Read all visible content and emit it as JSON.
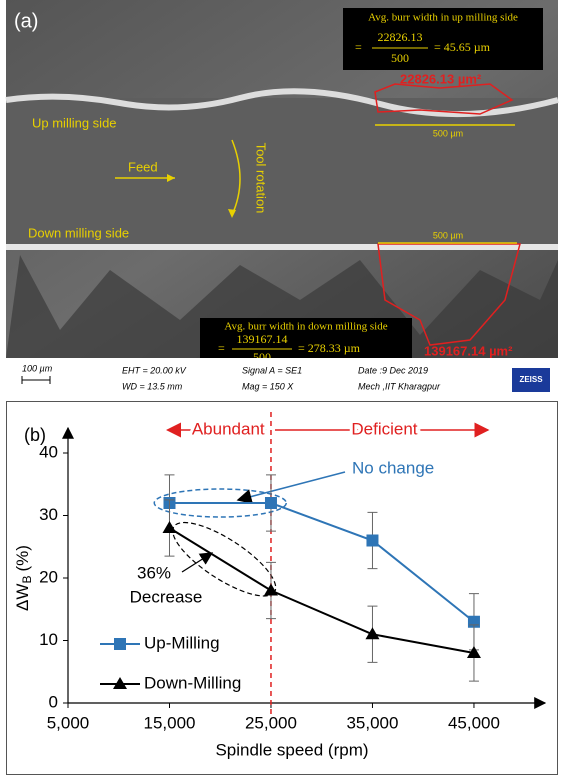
{
  "panel_a": {
    "label": "(a)",
    "up_box": {
      "title": "Avg. burr width in up milling side",
      "numerator": "22826.13",
      "denominator": "500",
      "result": "= 45.65 µm",
      "eq": "="
    },
    "up_area": "22826.13 µm²",
    "up_scale": "500 µm",
    "up_side": "Up milling side",
    "feed": "Feed",
    "rotation": "Tool rotation",
    "down_side": "Down milling side",
    "down_scale": "500 µm",
    "down_box": {
      "title": "Avg. burr width in down milling side",
      "numerator": "139167.14",
      "denominator": "500",
      "result": "= 278.33 µm",
      "eq": "="
    },
    "down_area": "139167.14 µm²",
    "info": {
      "scale": "100 µm",
      "eht": "EHT = 20.00 kV",
      "wd": "WD = 13.5 mm",
      "signal": "Signal A = SE1",
      "mag": "Mag =   150 X",
      "date": "Date :9 Dec 2019",
      "place": "Mech ,IIT Kharagpur",
      "logo": "ZEISS"
    }
  },
  "chart_data": {
    "type": "line",
    "panel_label": "(b)",
    "x_label": "Spindle speed (rpm)",
    "y_label": "ΔW",
    "y_label_sub": "B",
    "y_label_unit": "(%)",
    "x": [
      15000,
      25000,
      35000,
      45000
    ],
    "series": [
      {
        "name": "Up-Milling",
        "color": "#2e75b6",
        "marker": "square",
        "values": [
          32,
          32,
          26,
          13
        ],
        "errors": [
          4.5,
          4.5,
          4.5,
          4.5
        ]
      },
      {
        "name": "Down-Milling",
        "color": "#000000",
        "marker": "triangle",
        "values": [
          28,
          18,
          11,
          8
        ],
        "errors": [
          4.5,
          4.5,
          4.5,
          4.5
        ]
      }
    ],
    "xlim": [
      5000,
      52000
    ],
    "ylim": [
      0,
      44
    ],
    "xticks": [
      {
        "value": 5000,
        "label": "5,000"
      },
      {
        "value": 15000,
        "label": "15,000"
      },
      {
        "value": 25000,
        "label": "25,000"
      },
      {
        "value": 35000,
        "label": "35,000"
      },
      {
        "value": 45000,
        "label": "45,000"
      }
    ],
    "yticks": [
      0,
      10,
      20,
      30,
      40
    ],
    "legend": "lower left",
    "grid": false,
    "region_divider": 25000,
    "annotations": {
      "left_region": "Abundant",
      "right_region": "Deficient",
      "no_change": "No change",
      "percent": "36%",
      "decrease": "Decrease"
    }
  }
}
